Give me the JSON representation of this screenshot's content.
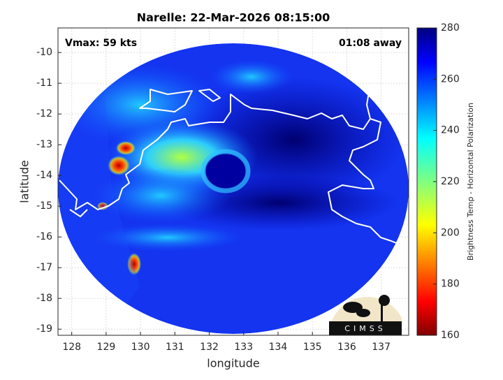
{
  "chart_data": {
    "type": "map",
    "title": "Narelle: 22-Mar-2026 08:15:00",
    "annotations": [
      "Vmax: 59 kts",
      "01:08 away"
    ],
    "xlabel": "longitude",
    "ylabel": "latitude",
    "xlim": [
      127.6,
      137.8
    ],
    "xticks": [
      128,
      129,
      130,
      131,
      132,
      133,
      134,
      135,
      136,
      137
    ],
    "ylim": [
      -19.2,
      -9.2
    ],
    "yticks": [
      -19,
      -18,
      -17,
      -16,
      -15,
      -14,
      -13,
      -12,
      -11,
      -10
    ],
    "grid": true,
    "colorbar": {
      "label": "Brightness Temp - Horizontal Polarization",
      "colormap": "jet",
      "lim": [
        160,
        280
      ],
      "ticks": [
        160,
        180,
        200,
        220,
        240,
        260,
        280
      ]
    },
    "logo_text": "CIMSS"
  }
}
